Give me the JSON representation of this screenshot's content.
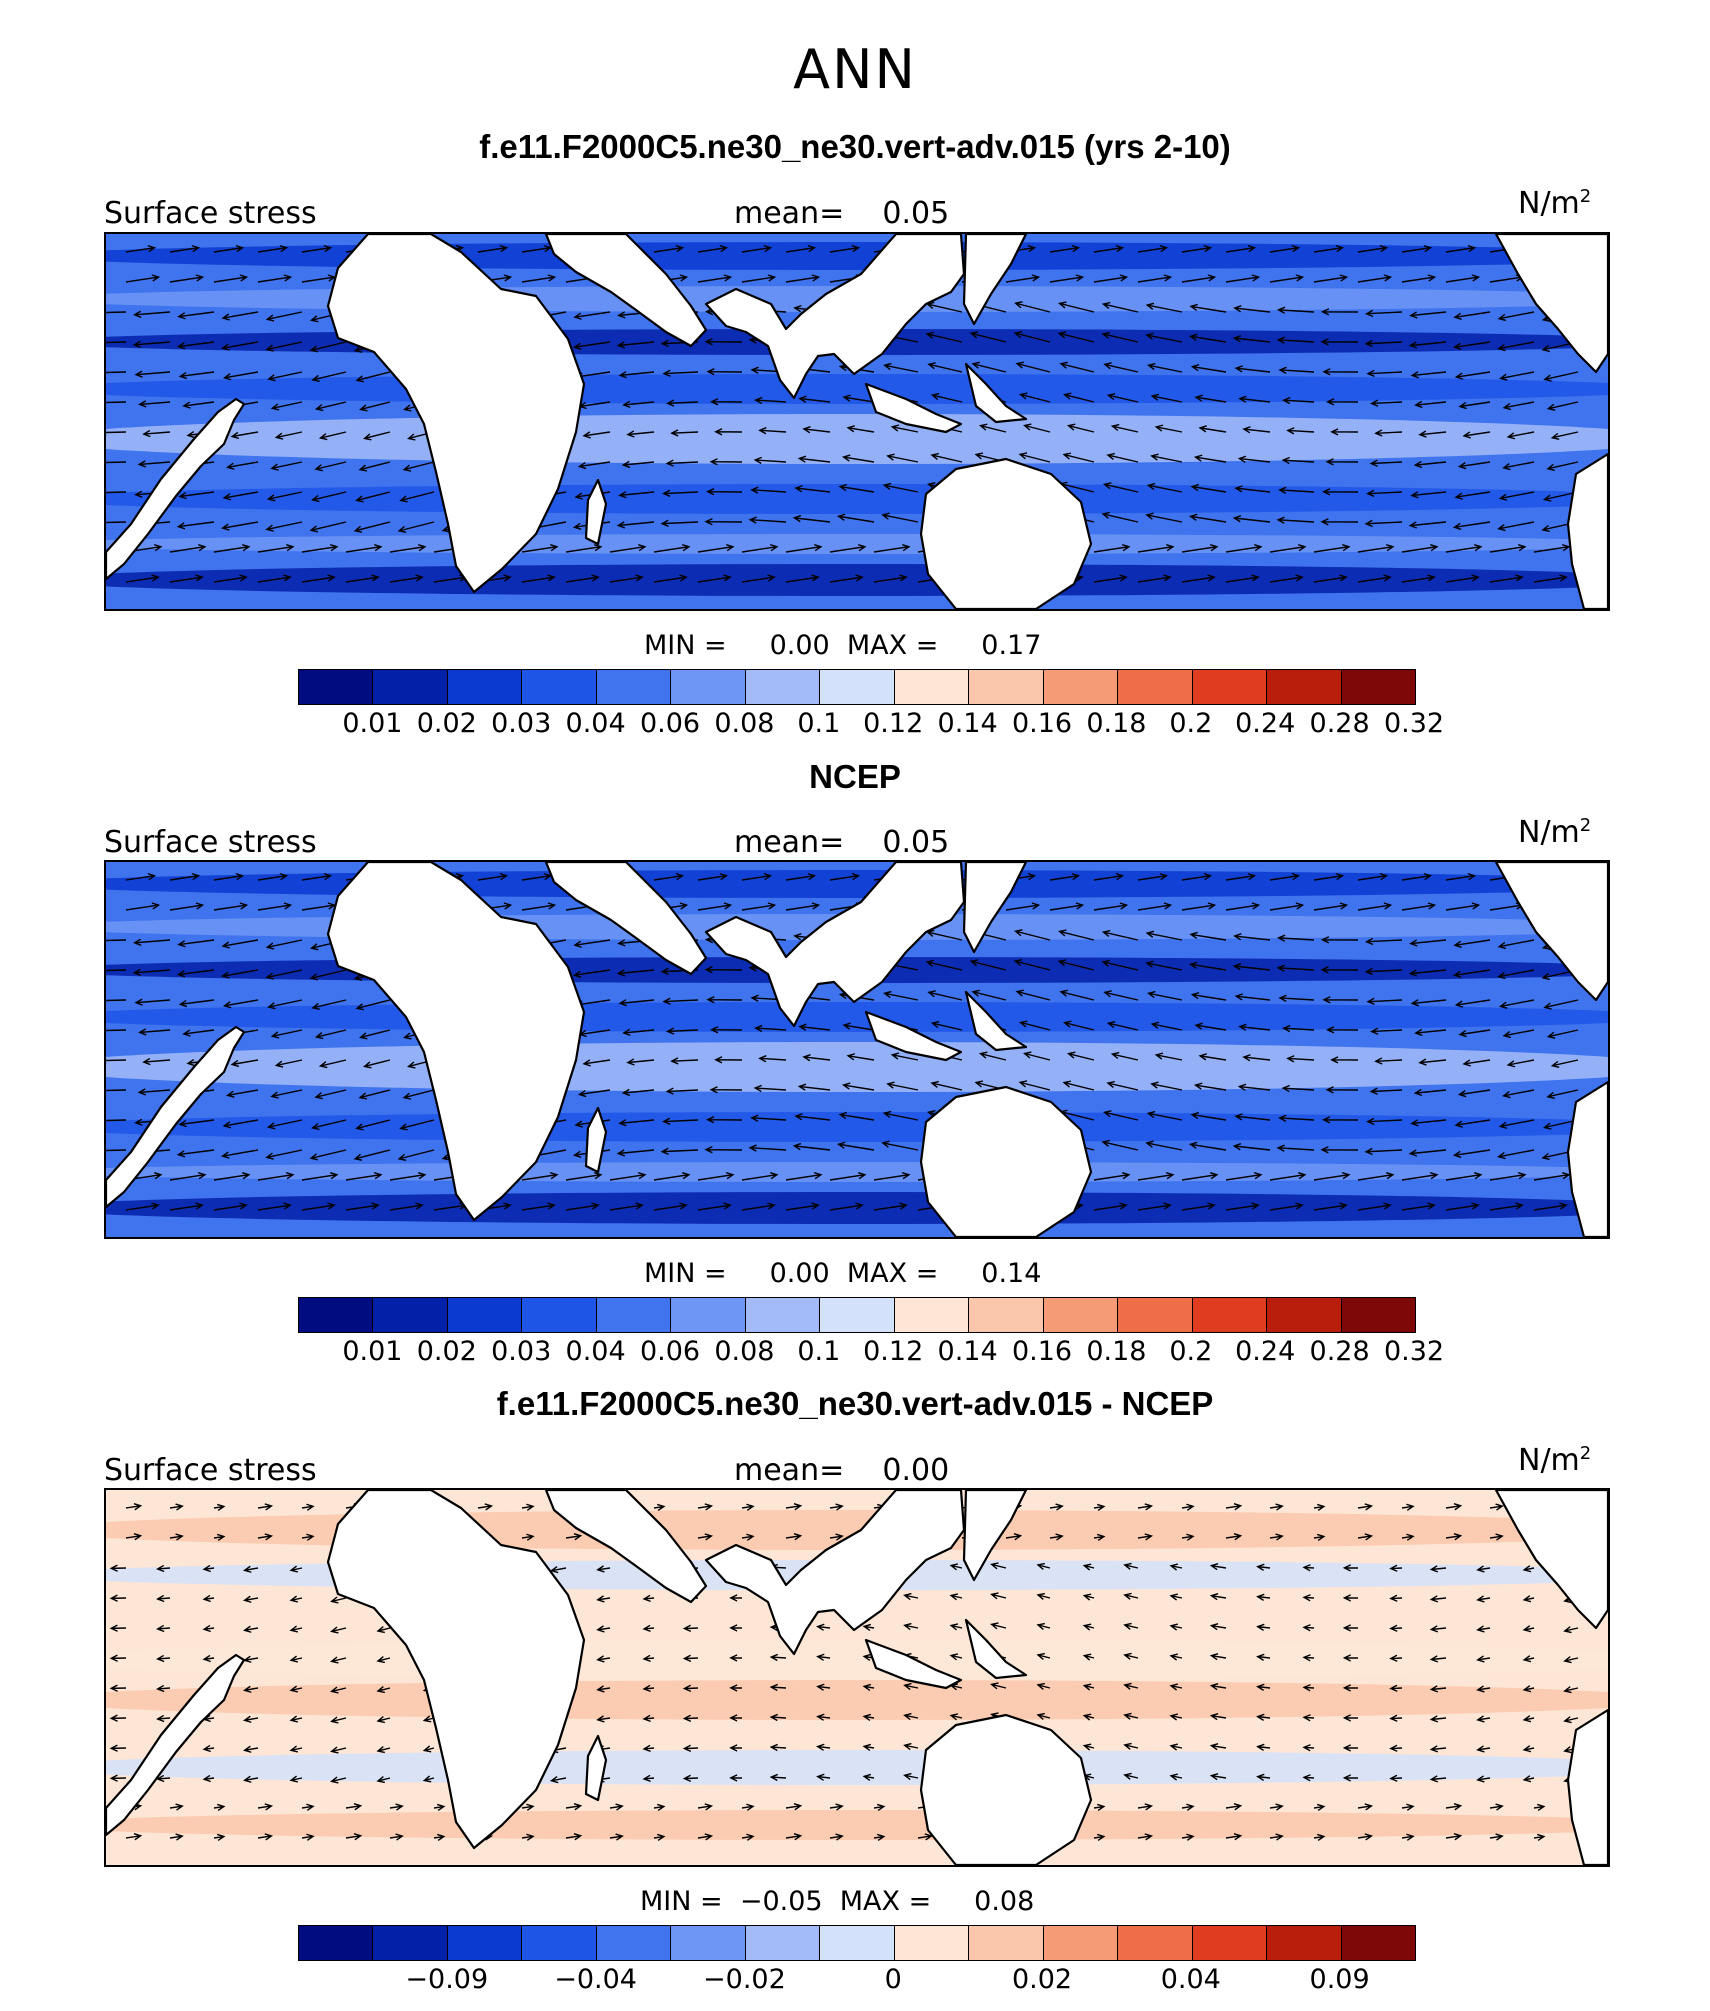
{
  "title": "ANN",
  "panels": [
    {
      "title": "f.e11.F2000C5.ne30_ne30.vert-adv.015 (yrs 2-10)",
      "variable": "Surface stress",
      "mean_label": "mean=",
      "mean_value": "0.05",
      "units_base": "N/m",
      "units_exp": "2",
      "min_label": "MIN =",
      "min_value": "0.00",
      "max_label": "MAX =",
      "max_value": "0.17",
      "colorbar_ticks": [
        "0.01",
        "0.02",
        "0.03",
        "0.04",
        "0.06",
        "0.08",
        "0.1",
        "0.12",
        "0.14",
        "0.16",
        "0.18",
        "0.2",
        "0.24",
        "0.28",
        "0.32"
      ],
      "field": "magnitude"
    },
    {
      "title": "NCEP",
      "variable": "Surface stress",
      "mean_label": "mean=",
      "mean_value": "0.05",
      "units_base": "N/m",
      "units_exp": "2",
      "min_label": "MIN =",
      "min_value": "0.00",
      "max_label": "MAX =",
      "max_value": "0.14",
      "colorbar_ticks": [
        "0.01",
        "0.02",
        "0.03",
        "0.04",
        "0.06",
        "0.08",
        "0.1",
        "0.12",
        "0.14",
        "0.16",
        "0.18",
        "0.2",
        "0.24",
        "0.28",
        "0.32"
      ],
      "field": "magnitude"
    },
    {
      "title": "f.e11.F2000C5.ne30_ne30.vert-adv.015 - NCEP",
      "variable": "Surface stress",
      "mean_label": "mean=",
      "mean_value": "0.00",
      "units_base": "N/m",
      "units_exp": "2",
      "min_label": "MIN =",
      "min_value": "−0.05",
      "max_label": "MAX =",
      "max_value": "0.08",
      "colorbar_ticks": [
        "",
        "−0.09",
        "",
        "−0.04",
        "",
        "−0.02",
        "",
        "0",
        "",
        "0.02",
        "",
        "0.04",
        "",
        "0.09",
        ""
      ],
      "field": "difference"
    }
  ],
  "colorbar_colors": [
    "#000c7f",
    "#0320a8",
    "#0a3ad0",
    "#1f55e6",
    "#3f74ee",
    "#6e97f5",
    "#a3bcf9",
    "#d4e1fb",
    "#fde6d6",
    "#fbc7ac",
    "#f59c77",
    "#ee6e48",
    "#e03c1f",
    "#b91e0d",
    "#7e0707"
  ],
  "land_color": "#ffffff",
  "coastline_color": "#000000"
}
